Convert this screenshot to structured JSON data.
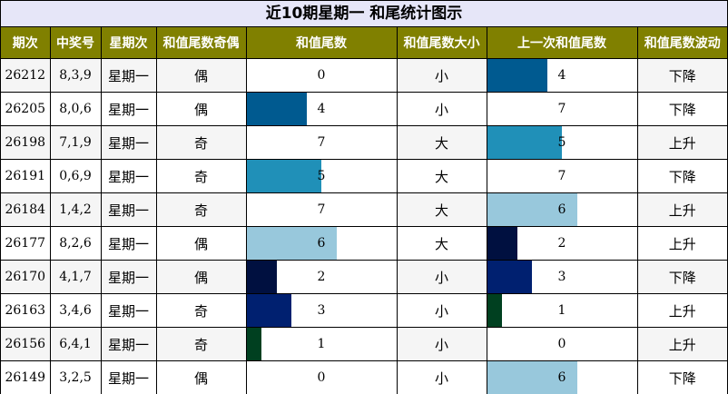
{
  "title": "近10期星期一 和尾统计图示",
  "headers": [
    "期次",
    "中奖号",
    "星期次",
    "和值尾数奇偶",
    "和值尾数",
    "和值尾数大小",
    "上一次和值尾数",
    "和值尾数波动"
  ],
  "colors": {
    "header_bg": "#808000",
    "title_bg": "#E6E6F8",
    "digit_colors": {
      "1": "#004020",
      "2": "#001040",
      "3": "#002070",
      "4": "#005A90",
      "5": "#2090B8",
      "6": "#98C8DC"
    }
  },
  "bar_max": 10,
  "rows": [
    {
      "issue": "26212",
      "numbers": "8,3,9",
      "weekday": "星期一",
      "parity": "偶",
      "tail": 0,
      "size": "小",
      "prev_tail": 4,
      "trend": "下降"
    },
    {
      "issue": "26205",
      "numbers": "8,0,6",
      "weekday": "星期一",
      "parity": "偶",
      "tail": 4,
      "size": "小",
      "prev_tail": 7,
      "trend": "下降"
    },
    {
      "issue": "26198",
      "numbers": "7,1,9",
      "weekday": "星期一",
      "parity": "奇",
      "tail": 7,
      "size": "大",
      "prev_tail": 5,
      "trend": "上升"
    },
    {
      "issue": "26191",
      "numbers": "0,6,9",
      "weekday": "星期一",
      "parity": "奇",
      "tail": 5,
      "size": "大",
      "prev_tail": 7,
      "trend": "下降"
    },
    {
      "issue": "26184",
      "numbers": "1,4,2",
      "weekday": "星期一",
      "parity": "奇",
      "tail": 7,
      "size": "大",
      "prev_tail": 6,
      "trend": "上升"
    },
    {
      "issue": "26177",
      "numbers": "8,2,6",
      "weekday": "星期一",
      "parity": "偶",
      "tail": 6,
      "size": "大",
      "prev_tail": 2,
      "trend": "上升"
    },
    {
      "issue": "26170",
      "numbers": "4,1,7",
      "weekday": "星期一",
      "parity": "偶",
      "tail": 2,
      "size": "小",
      "prev_tail": 3,
      "trend": "下降"
    },
    {
      "issue": "26163",
      "numbers": "3,4,6",
      "weekday": "星期一",
      "parity": "奇",
      "tail": 3,
      "size": "小",
      "prev_tail": 1,
      "trend": "上升"
    },
    {
      "issue": "26156",
      "numbers": "6,4,1",
      "weekday": "星期一",
      "parity": "奇",
      "tail": 1,
      "size": "小",
      "prev_tail": 0,
      "trend": "上升"
    },
    {
      "issue": "26149",
      "numbers": "3,2,5",
      "weekday": "星期一",
      "parity": "偶",
      "tail": 0,
      "size": "小",
      "prev_tail": 6,
      "trend": "下降"
    }
  ]
}
